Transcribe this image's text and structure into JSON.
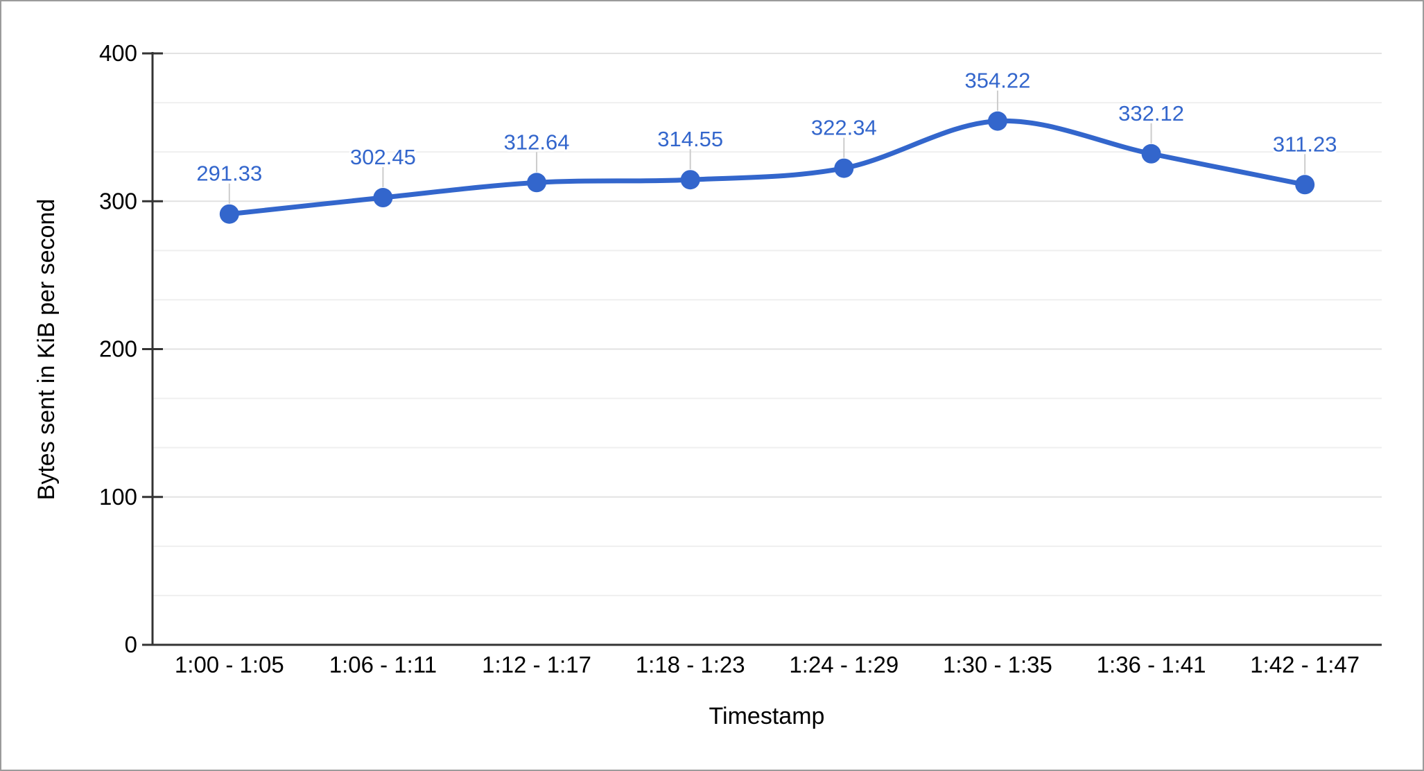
{
  "chart_data": {
    "type": "line",
    "curve": "smooth",
    "categories": [
      "1:00 - 1:05",
      "1:06 - 1:11",
      "1:12 - 1:17",
      "1:18 - 1:23",
      "1:24 - 1:29",
      "1:30 - 1:35",
      "1:36 - 1:41",
      "1:42 - 1:47"
    ],
    "values": [
      291.33,
      302.45,
      312.64,
      314.55,
      322.34,
      354.22,
      332.12,
      311.23
    ],
    "point_labels": [
      "291.33",
      "302.45",
      "312.64",
      "314.55",
      "322.34",
      "354.22",
      "332.12",
      "311.23"
    ],
    "title": "",
    "xlabel": "Timestamp",
    "ylabel": "Bytes sent in KiB per second",
    "ylim": [
      0,
      400
    ],
    "yticks": [
      0,
      100,
      200,
      300,
      400
    ],
    "minor_gridlines_between_majors": 2,
    "grid": "horizontal-only",
    "legend_position": "none",
    "colors": {
      "series": "#3366CC",
      "annotation_text": "#3366CC",
      "annotation_stem": "#cccccc",
      "gridline_major": "#e2e2e2",
      "gridline_minor": "#efefef",
      "axis_line": "#333333",
      "label_text": "#000000",
      "frame_border": "#9b9b9b",
      "background": "#ffffff"
    }
  }
}
